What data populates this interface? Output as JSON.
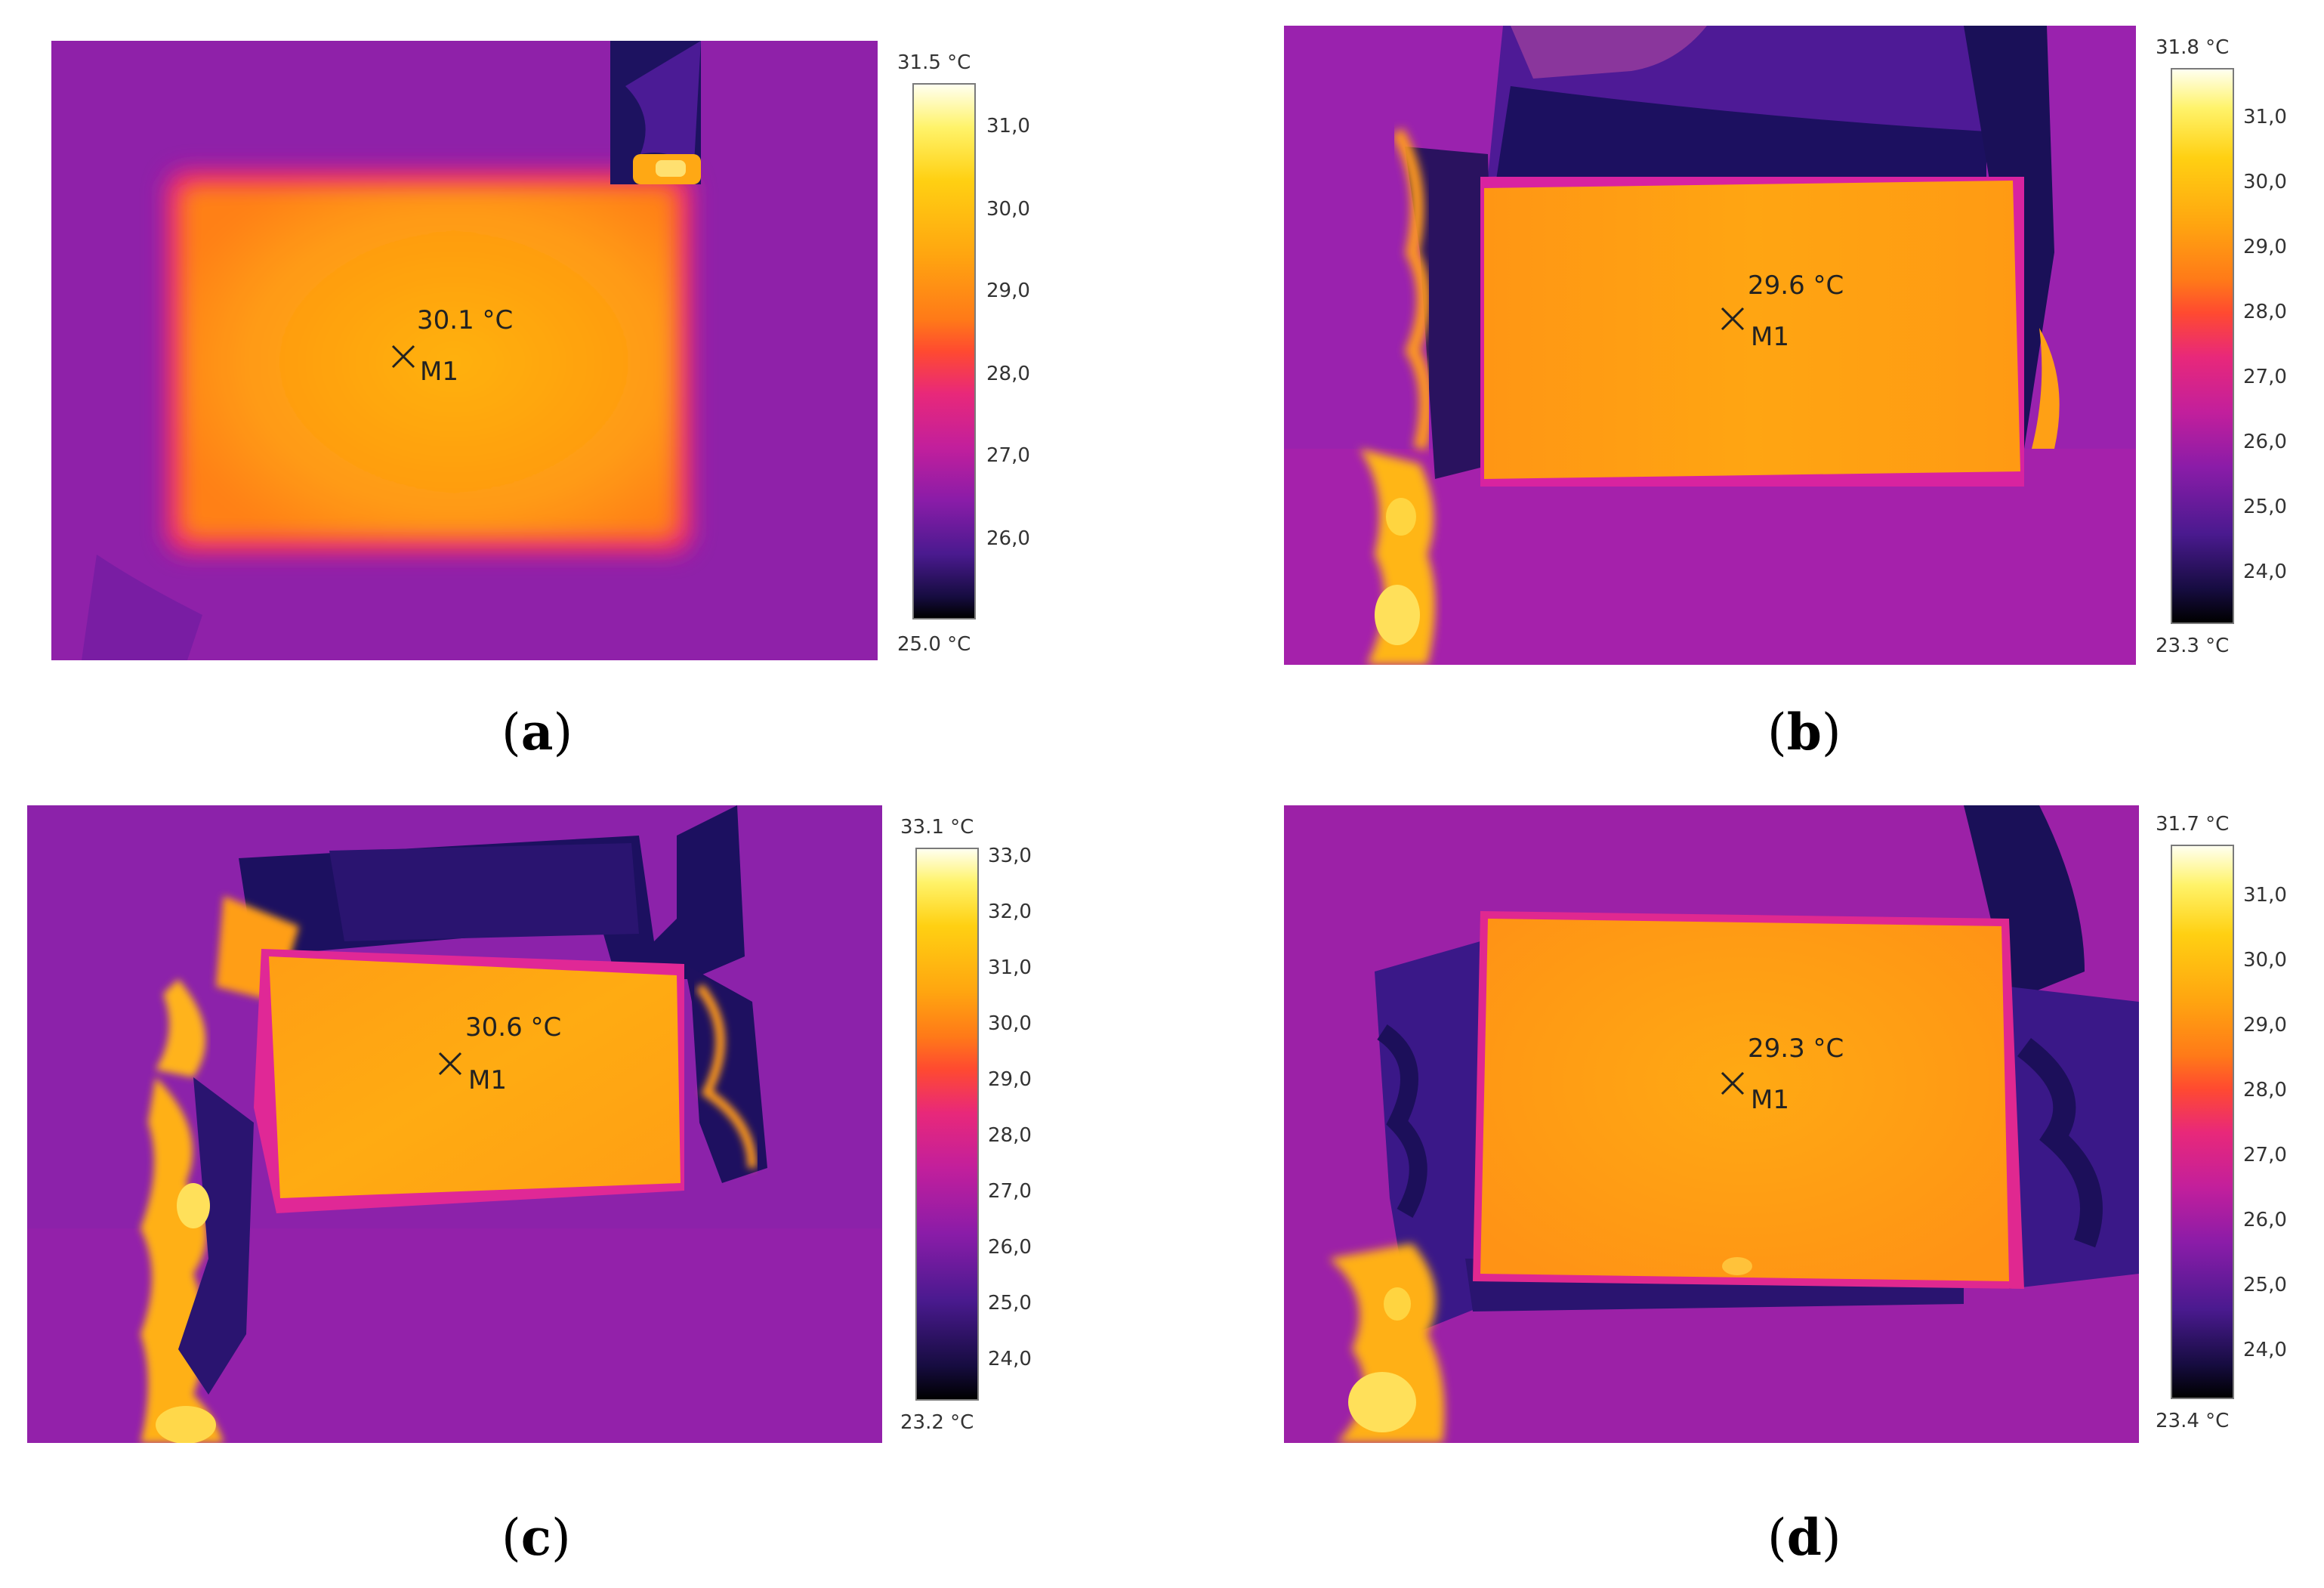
{
  "colors": {
    "palette": [
      "#000000",
      "#1a0f55",
      "#4a1a92",
      "#7a16a6",
      "#b51fa0",
      "#e8287a",
      "#ff4e28",
      "#ff8a10",
      "#ffb80a",
      "#ffe82c",
      "#ffffe8"
    ],
    "background": "#8a20a8",
    "object": "#ffa215"
  },
  "panels": [
    {
      "id": "a",
      "caption_letter": "a",
      "readout": "30.1 °C",
      "marker_label": "M1",
      "scale_max": "31.5 °C",
      "scale_min": "25.0 °C",
      "ticks": [
        "31,0",
        "30,0",
        "29,0",
        "28,0",
        "27,0",
        "26,0"
      ]
    },
    {
      "id": "b",
      "caption_letter": "b",
      "readout": "29.6 °C",
      "marker_label": "M1",
      "scale_max": "31.8 °C",
      "scale_min": "23.3 °C",
      "ticks": [
        "31,0",
        "30,0",
        "29,0",
        "28,0",
        "27,0",
        "26,0",
        "25,0",
        "24,0"
      ]
    },
    {
      "id": "c",
      "caption_letter": "c",
      "readout": "30.6 °C",
      "marker_label": "M1",
      "scale_max": "33.1 °C",
      "scale_min": "23.2 °C",
      "ticks": [
        "33,0",
        "32,0",
        "31,0",
        "30,0",
        "29,0",
        "28,0",
        "27,0",
        "26,0",
        "25,0",
        "24,0"
      ]
    },
    {
      "id": "d",
      "caption_letter": "d",
      "readout": "29.3 °C",
      "marker_label": "M1",
      "scale_max": "31.7 °C",
      "scale_min": "23.4 °C",
      "ticks": [
        "31,0",
        "30,0",
        "29,0",
        "28,0",
        "27,0",
        "26,0",
        "25,0",
        "24,0"
      ]
    }
  ]
}
